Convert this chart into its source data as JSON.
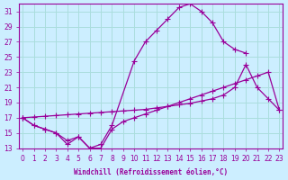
{
  "xlabel": "Windchill (Refroidissement éolien,°C)",
  "bg_color": "#cceeff",
  "grid_color": "#aadddd",
  "line_color": "#990099",
  "xlim": [
    0,
    23
  ],
  "ylim": [
    13,
    32
  ],
  "yticks": [
    13,
    15,
    17,
    19,
    21,
    23,
    25,
    27,
    29,
    31
  ],
  "xticks": [
    0,
    1,
    2,
    3,
    4,
    5,
    6,
    7,
    8,
    9,
    10,
    11,
    12,
    13,
    14,
    15,
    16,
    17,
    18,
    19,
    20,
    21,
    22,
    23
  ],
  "line1_x": [
    0,
    1,
    2,
    3,
    4,
    5,
    6,
    7,
    8,
    10,
    11,
    12,
    13,
    14,
    15,
    16,
    17,
    18,
    19,
    20
  ],
  "line1_y": [
    17,
    16,
    15.5,
    15,
    14,
    14.5,
    13,
    13.5,
    16,
    24.5,
    27,
    28.5,
    30,
    31.5,
    32,
    31,
    29.5,
    27,
    26,
    25.5
  ],
  "line2_x": [
    0,
    1,
    2,
    3,
    4,
    5,
    6,
    7,
    8,
    9,
    10,
    11,
    12,
    13,
    14,
    15,
    16,
    17,
    18,
    19,
    20,
    21,
    22,
    23
  ],
  "line2_y": [
    17,
    17.1,
    17.2,
    17.3,
    17.4,
    17.5,
    17.6,
    17.7,
    17.8,
    17.9,
    18.0,
    18.1,
    18.3,
    18.5,
    18.7,
    18.9,
    19.2,
    19.5,
    20,
    21,
    24,
    21,
    19.5,
    18
  ],
  "line3_x": [
    0,
    1,
    2,
    3,
    4,
    5,
    6,
    7,
    8,
    9,
    10,
    11,
    12,
    13,
    14,
    15,
    16,
    17,
    18,
    19,
    20,
    21,
    22,
    23
  ],
  "line3_y": [
    17,
    16,
    15.5,
    15,
    13.5,
    14.5,
    13,
    13,
    15.5,
    16.5,
    17,
    17.5,
    18,
    18.5,
    19,
    19.5,
    20,
    20.5,
    21,
    21.5,
    22,
    22.5,
    23,
    18
  ]
}
